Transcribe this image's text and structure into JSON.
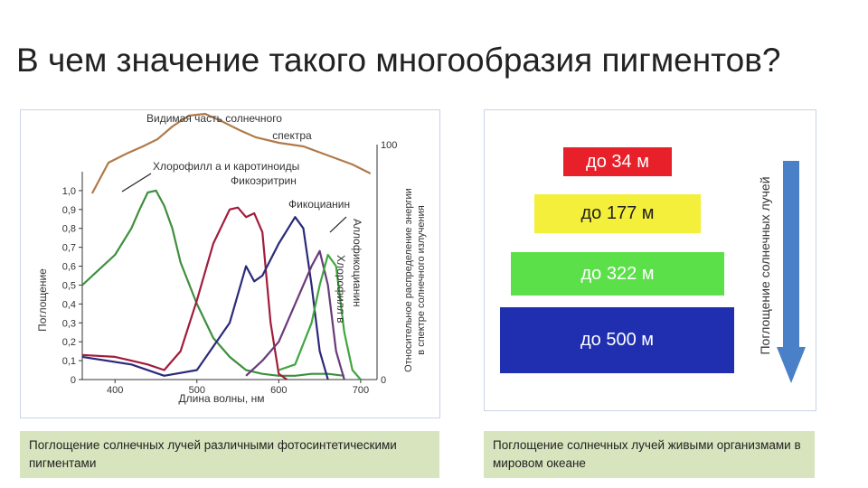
{
  "slide": {
    "title": "В чем значение такого многообразия пигментов?"
  },
  "left_chart": {
    "visible_label_line1": "Видимая часть солнечного",
    "visible_label_line2": "спектра",
    "y_left_label": "Поглощение",
    "y_right_label_line1": "Относительное распределение энергии",
    "y_right_label_line2": "в спектре солнечного излучения",
    "x_label": "Длина волны, нм",
    "x_ticks": [
      "400",
      "500",
      "600",
      "700"
    ],
    "y_ticks": [
      "0",
      "0,1",
      "0,2",
      "0,3",
      "0,4",
      "0,5",
      "0,6",
      "0,7",
      "0,8",
      "0,9",
      "1,0"
    ],
    "y_right_ticks": [
      "0",
      "100"
    ],
    "labels": {
      "chlorophyll_a": "Хлорофилл а и каротиноиды",
      "phycoerythrin": "Фикоэритрин",
      "phycocyanin": "Фикоцианин",
      "allophycocyanin": "Аллофикоцианин",
      "chlorophyll_b_line1": "Хлорофилл в"
    },
    "colors": {
      "solar": "#b07a4a",
      "chlorophyll": "#3e8f3e",
      "phycoerythrin": "#a01c3c",
      "phycocyanin": "#2a2a7a",
      "allophycocyanin": "#6a3a7a",
      "chlorophyll_b": "#3fa63f"
    }
  },
  "chart_data": {
    "type": "line",
    "xlabel": "Длина волны, нм",
    "ylabel": "Поглощение",
    "xlim": [
      360,
      720
    ],
    "ylim": [
      0,
      1.1
    ],
    "series": [
      {
        "name": "Хлорофилл а и каротиноиды",
        "color": "#3e8f3e",
        "x": [
          360,
          380,
          400,
          420,
          430,
          440,
          450,
          460,
          470,
          480,
          500,
          520,
          540,
          560,
          580,
          600,
          620,
          640,
          660,
          680
        ],
        "y": [
          0.5,
          0.58,
          0.66,
          0.8,
          0.9,
          0.99,
          1.0,
          0.92,
          0.8,
          0.62,
          0.4,
          0.22,
          0.12,
          0.05,
          0.03,
          0.02,
          0.02,
          0.03,
          0.03,
          0.02
        ]
      },
      {
        "name": "Фикоэритрин",
        "color": "#a01c3c",
        "x": [
          360,
          400,
          420,
          440,
          460,
          480,
          500,
          520,
          540,
          550,
          560,
          570,
          580,
          590,
          600,
          610
        ],
        "y": [
          0.13,
          0.12,
          0.1,
          0.08,
          0.05,
          0.15,
          0.42,
          0.72,
          0.9,
          0.91,
          0.86,
          0.88,
          0.78,
          0.3,
          0.03,
          0.0
        ]
      },
      {
        "name": "Фикоцианин",
        "color": "#2a2a7a",
        "x": [
          360,
          420,
          460,
          500,
          540,
          560,
          570,
          580,
          600,
          620,
          630,
          640,
          650,
          660
        ],
        "y": [
          0.12,
          0.08,
          0.02,
          0.05,
          0.3,
          0.6,
          0.52,
          0.55,
          0.72,
          0.86,
          0.8,
          0.5,
          0.15,
          0.0
        ]
      },
      {
        "name": "Аллофикоцианин",
        "color": "#6a3a7a",
        "x": [
          560,
          580,
          600,
          620,
          640,
          650,
          660,
          670,
          680
        ],
        "y": [
          0.02,
          0.1,
          0.2,
          0.4,
          0.6,
          0.68,
          0.5,
          0.15,
          0.0
        ]
      },
      {
        "name": "Хлорофилл в",
        "color": "#3fa63f",
        "x": [
          600,
          620,
          640,
          650,
          660,
          670,
          680,
          690,
          700
        ],
        "y": [
          0.05,
          0.08,
          0.3,
          0.5,
          0.66,
          0.6,
          0.25,
          0.05,
          0.0
        ]
      }
    ]
  },
  "depth_chart": {
    "bars": [
      {
        "label": "до 34 м",
        "color": "#e8202a"
      },
      {
        "label": "до 177 м",
        "color": "#f3ef3a"
      },
      {
        "label": "до 322 м",
        "color": "#5ce04a"
      },
      {
        "label": "до 500 м",
        "color": "#1f2fb0"
      }
    ],
    "arrow_label": "Поглощение солнечных лучей",
    "arrow_color": "#4a80c8"
  },
  "captions": {
    "left": "Поглощение солнечных лучей различными фотосинтетическими пигментами",
    "right": "Поглощение солнечных лучей живыми организмами в мировом океане"
  }
}
